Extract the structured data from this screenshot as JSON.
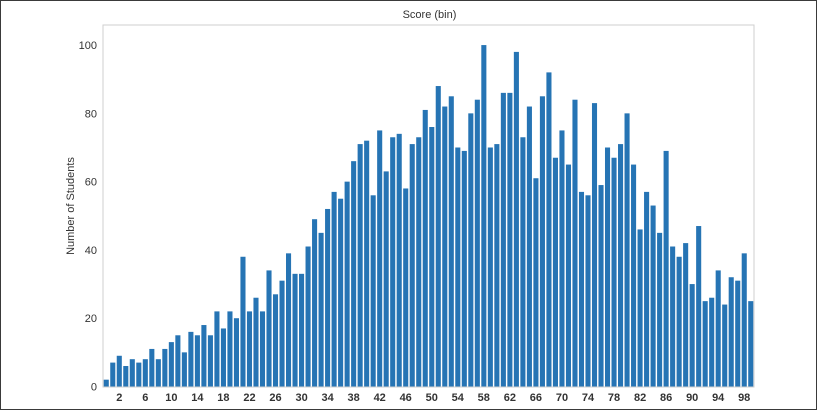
{
  "chart_data": {
    "type": "bar",
    "title": "Score (bin)",
    "xlabel": "",
    "ylabel": "Number of Students",
    "ylim": [
      0,
      105
    ],
    "yticks": [
      0,
      20,
      40,
      60,
      80,
      100
    ],
    "xtick_labels": [
      "2",
      "6",
      "10",
      "14",
      "18",
      "22",
      "26",
      "30",
      "34",
      "38",
      "42",
      "46",
      "50",
      "54",
      "58",
      "62",
      "66",
      "70",
      "74",
      "78",
      "82",
      "86",
      "90",
      "94",
      "98"
    ],
    "grid": false,
    "color": "#2674b4",
    "categories": [
      0,
      1,
      2,
      3,
      4,
      5,
      6,
      7,
      8,
      9,
      10,
      11,
      12,
      13,
      14,
      15,
      16,
      17,
      18,
      19,
      20,
      21,
      22,
      23,
      24,
      25,
      26,
      27,
      28,
      29,
      30,
      31,
      32,
      33,
      34,
      35,
      36,
      37,
      38,
      39,
      40,
      41,
      42,
      43,
      44,
      45,
      46,
      47,
      48,
      49,
      50,
      51,
      52,
      53,
      54,
      55,
      56,
      57,
      58,
      59,
      60,
      61,
      62,
      63,
      64,
      65,
      66,
      67,
      68,
      69,
      70,
      71,
      72,
      73,
      74,
      75,
      76,
      77,
      78,
      79,
      80,
      81,
      82,
      83,
      84,
      85,
      86,
      87,
      88,
      89,
      90,
      91,
      92,
      93,
      94,
      95,
      96,
      97,
      98,
      99
    ],
    "values": [
      2,
      7,
      9,
      6,
      8,
      7,
      8,
      11,
      8,
      11,
      13,
      15,
      10,
      16,
      15,
      18,
      15,
      22,
      17,
      22,
      20,
      38,
      22,
      26,
      22,
      34,
      27,
      31,
      39,
      33,
      33,
      41,
      49,
      45,
      52,
      57,
      55,
      60,
      66,
      71,
      72,
      56,
      75,
      63,
      73,
      74,
      58,
      71,
      73,
      81,
      76,
      88,
      82,
      85,
      70,
      69,
      80,
      84,
      100,
      70,
      71,
      86,
      86,
      98,
      73,
      82,
      61,
      85,
      92,
      67,
      75,
      65,
      84,
      57,
      56,
      83,
      59,
      70,
      67,
      71,
      80,
      65,
      46,
      57,
      53,
      45,
      69,
      41,
      38,
      42,
      30,
      47,
      25,
      26,
      34,
      24,
      32,
      31,
      39,
      25
    ]
  }
}
